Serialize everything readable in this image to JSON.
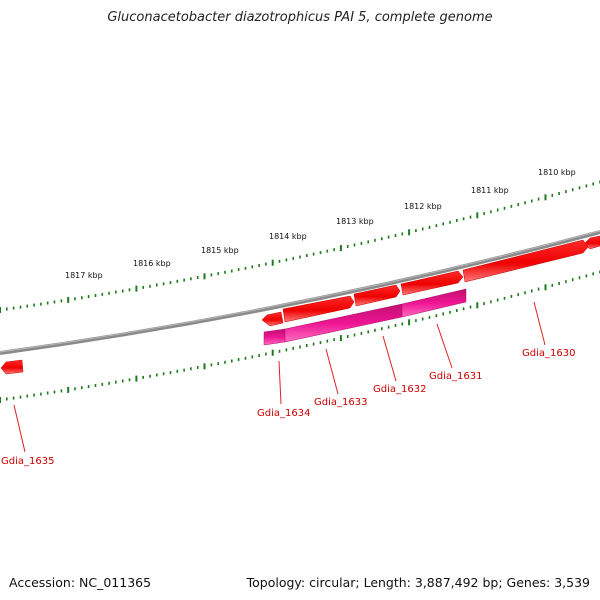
{
  "title": "Gluconacetobacter diazotrophicus PAI 5, complete genome",
  "footer": {
    "accession": "Accession: NC_011365",
    "summary": "Topology: circular; Length: 3,887,492 bp; Genes: 3,539"
  },
  "colors": {
    "backbone": "#7a7a7a",
    "forward_gene": "#ee0000",
    "reverse_gene": "#ee1493",
    "tick": "#1e7a1e",
    "label": "#cc0000"
  },
  "scale_labels": [
    "1810 kbp",
    "1811 kbp",
    "1812 kbp",
    "1813 kbp",
    "1814 kbp",
    "1815 kbp",
    "1816 kbp",
    "1817 kbp"
  ],
  "genes": [
    {
      "name": "Gdia_1630",
      "strand": "forward"
    },
    {
      "name": "Gdia_1631",
      "strand": "reverse"
    },
    {
      "name": "Gdia_1632",
      "strand": "reverse"
    },
    {
      "name": "Gdia_1633",
      "strand": "reverse"
    },
    {
      "name": "Gdia_1634",
      "strand": "forward"
    },
    {
      "name": "Gdia_1635",
      "strand": "forward"
    }
  ]
}
